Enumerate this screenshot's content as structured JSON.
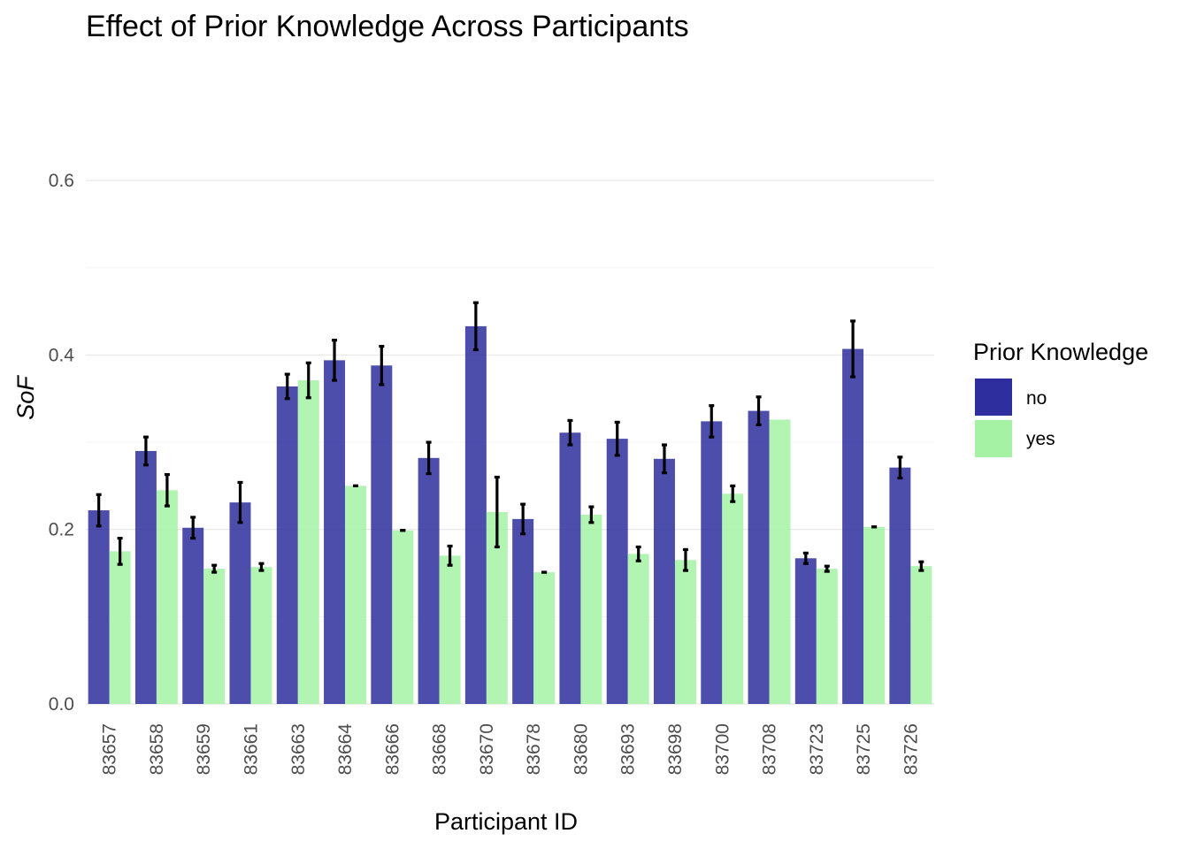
{
  "chart_data": {
    "type": "bar",
    "title": "Effect of Prior Knowledge Across Participants",
    "xlabel": "Participant ID",
    "ylabel": "SoF",
    "ylim": [
      0,
      0.7
    ],
    "yticks": [
      "0.0",
      "0.2",
      "0.4",
      "0.6"
    ],
    "ytick_values": [
      0,
      0.2,
      0.4,
      0.6
    ],
    "grid": true,
    "legend_position": "right",
    "legend_title": "Prior Knowledge",
    "categories": [
      "83657",
      "83658",
      "83659",
      "83661",
      "83663",
      "83664",
      "83666",
      "83668",
      "83670",
      "83678",
      "83680",
      "83693",
      "83698",
      "83700",
      "83708",
      "83723",
      "83725",
      "83726"
    ],
    "series": [
      {
        "name": "no",
        "color": "#2e2e9e",
        "values": [
          0.222,
          0.29,
          0.202,
          0.231,
          0.364,
          0.394,
          0.388,
          0.282,
          0.433,
          0.212,
          0.311,
          0.304,
          0.281,
          0.324,
          0.336,
          0.167,
          0.407,
          0.271
        ],
        "error_low": [
          0.204,
          0.274,
          0.19,
          0.208,
          0.35,
          0.371,
          0.366,
          0.264,
          0.406,
          0.195,
          0.297,
          0.285,
          0.265,
          0.306,
          0.32,
          0.161,
          0.375,
          0.259
        ],
        "error_high": [
          0.24,
          0.306,
          0.214,
          0.254,
          0.378,
          0.417,
          0.41,
          0.3,
          0.46,
          0.229,
          0.325,
          0.323,
          0.297,
          0.342,
          0.352,
          0.173,
          0.439,
          0.283
        ]
      },
      {
        "name": "yes",
        "color": "#a5f2a5",
        "values": [
          0.175,
          0.245,
          0.155,
          0.157,
          0.371,
          0.25,
          0.199,
          0.17,
          0.22,
          0.151,
          0.217,
          0.172,
          0.165,
          0.241,
          0.326,
          0.155,
          0.203,
          0.158
        ],
        "error_low": [
          0.16,
          0.227,
          0.151,
          0.153,
          0.351,
          0.25,
          0.199,
          0.159,
          0.18,
          0.151,
          0.208,
          0.164,
          0.153,
          0.232,
          null,
          0.152,
          0.203,
          0.153
        ],
        "error_high": [
          0.19,
          0.263,
          0.159,
          0.161,
          0.391,
          0.25,
          0.199,
          0.181,
          0.26,
          0.151,
          0.226,
          0.18,
          0.177,
          0.25,
          null,
          0.158,
          0.203,
          0.163
        ]
      }
    ]
  }
}
